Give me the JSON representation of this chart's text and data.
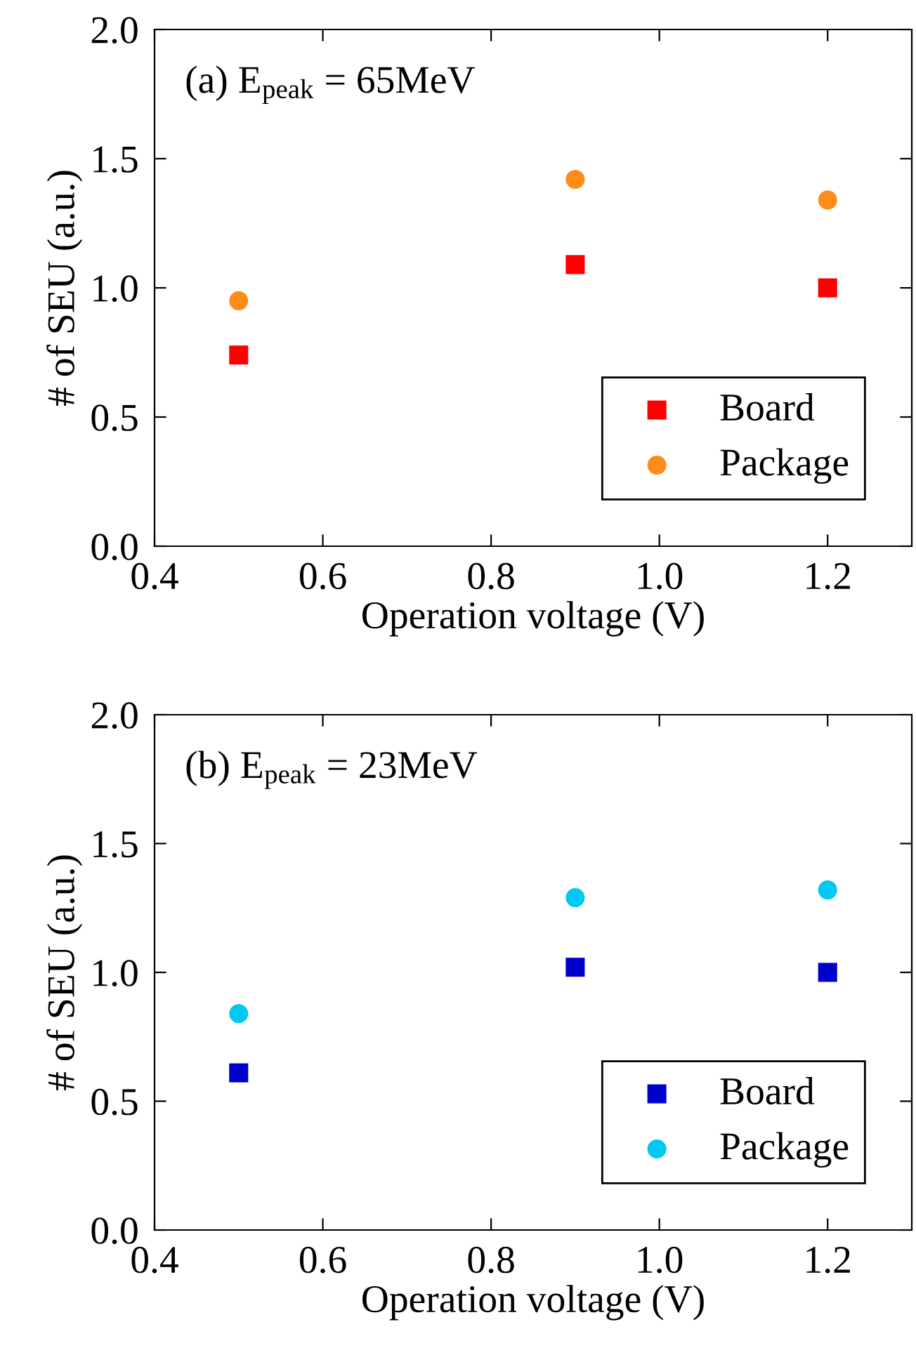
{
  "chart_data": [
    {
      "type": "scatter",
      "title": "(a) E$_{peak}$ = 65MeV",
      "xlabel": "Operation voltage (V)",
      "ylabel": "# of SEU (a.u.)",
      "x": [
        0.5,
        0.9,
        1.2
      ],
      "series": [
        {
          "name": "Board",
          "color": "#ff0000",
          "marker": "square",
          "values": [
            0.74,
            1.09,
            1.0
          ]
        },
        {
          "name": "Package",
          "color": "#ff8c1a",
          "marker": "circle",
          "values": [
            0.95,
            1.42,
            1.34
          ]
        }
      ],
      "xlim": [
        0.4,
        1.3
      ],
      "xticks": [
        {
          "value": 0.4,
          "label": "0.4"
        },
        {
          "value": 0.6,
          "label": "0.6"
        },
        {
          "value": 0.8,
          "label": "0.8"
        },
        {
          "value": 1,
          "label": "1.0"
        },
        {
          "value": 1.2,
          "label": "1.2"
        }
      ],
      "ylim": [
        0,
        2.0
      ],
      "yticks": [
        {
          "value": 0,
          "label": "0.0"
        },
        {
          "value": 0.5,
          "label": "0.5"
        },
        {
          "value": 1,
          "label": "1.0"
        },
        {
          "value": 1.5,
          "label": "1.5"
        },
        {
          "value": 2,
          "label": "2.0"
        }
      ],
      "legend": "bottom right",
      "grid": false
    },
    {
      "type": "scatter",
      "title": "(b) E$_{peak}$ = 23MeV",
      "xlabel": "Operation voltage (V)",
      "ylabel": "# of SEU (a.u.)",
      "x": [
        0.5,
        0.9,
        1.2
      ],
      "series": [
        {
          "name": "Board",
          "color": "#0000cc",
          "marker": "square",
          "values": [
            0.61,
            1.02,
            1.0
          ]
        },
        {
          "name": "Package",
          "color": "#00c8f0",
          "marker": "circle",
          "values": [
            0.84,
            1.29,
            1.32
          ]
        }
      ],
      "xlim": [
        0.4,
        1.3
      ],
      "xticks": [
        {
          "value": 0.4,
          "label": "0.4"
        },
        {
          "value": 0.6,
          "label": "0.6"
        },
        {
          "value": 0.8,
          "label": "0.8"
        },
        {
          "value": 1,
          "label": "1.0"
        },
        {
          "value": 1.2,
          "label": "1.2"
        }
      ],
      "ylim": [
        0,
        2.0
      ],
      "yticks": [
        {
          "value": 0,
          "label": "0.0"
        },
        {
          "value": 0.5,
          "label": "0.5"
        },
        {
          "value": 1,
          "label": "1.0"
        },
        {
          "value": 1.5,
          "label": "1.5"
        },
        {
          "value": 2,
          "label": "2.0"
        }
      ],
      "legend": "bottom right",
      "grid": false
    }
  ]
}
